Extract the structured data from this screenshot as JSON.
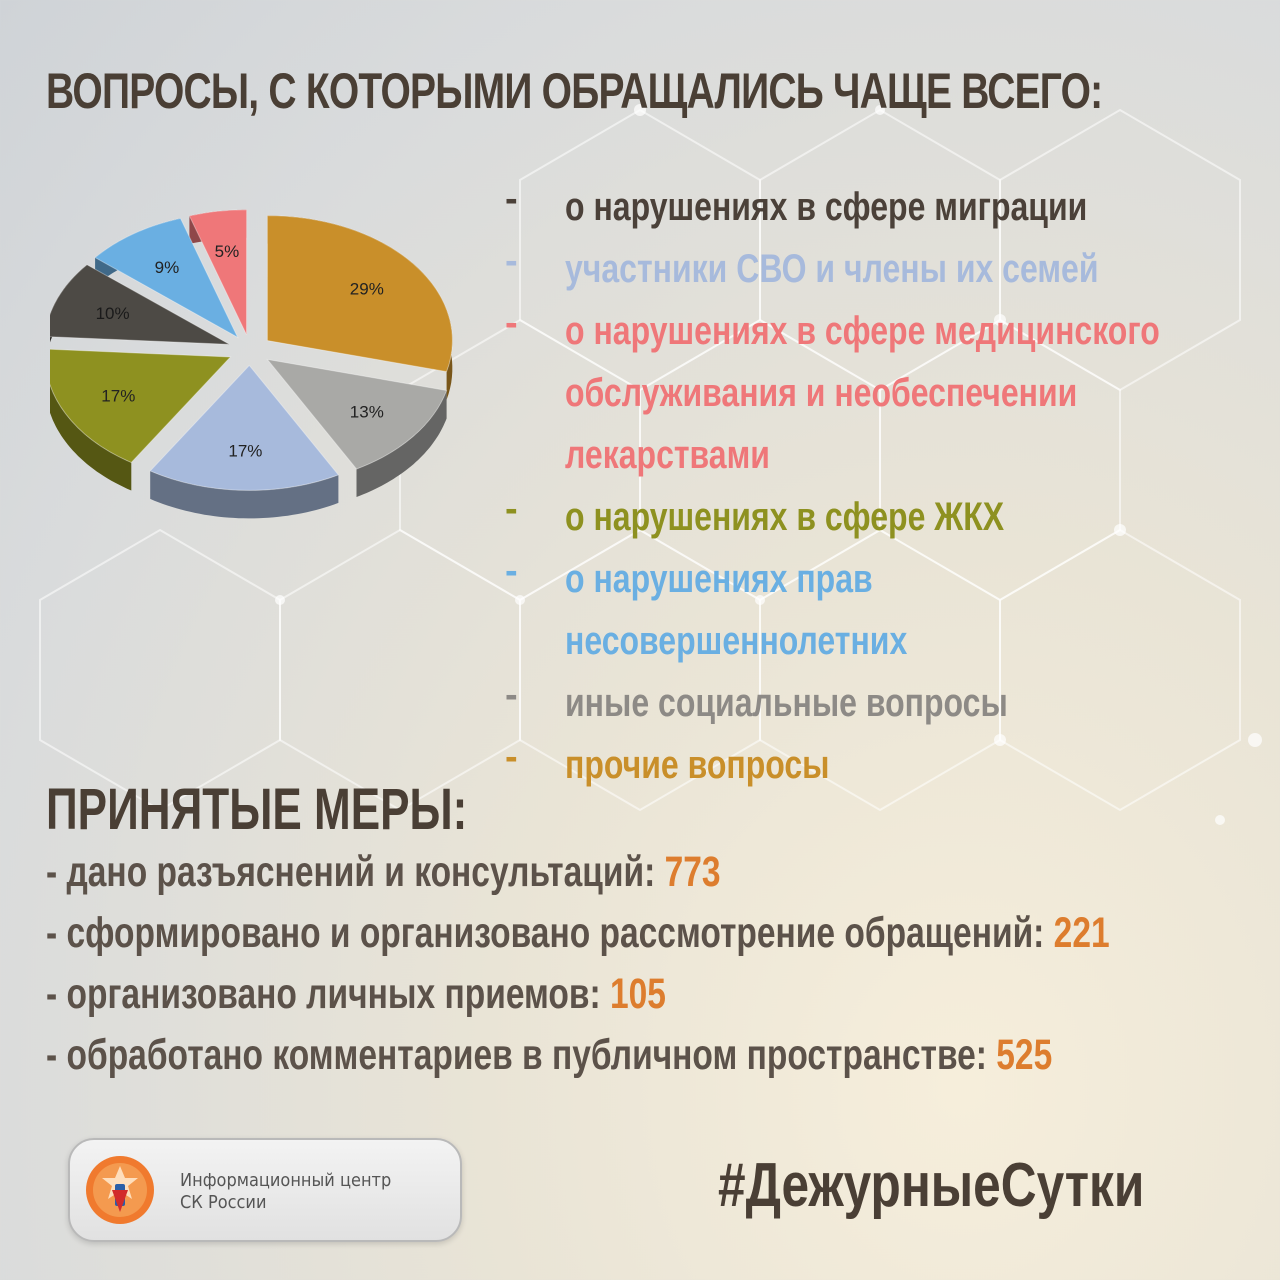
{
  "title": "ВОПРОСЫ, С КОТОРЫМИ ОБРАЩАЛИСЬ ЧАЩЕ ВСЕГО:",
  "chart_data": {
    "type": "pie",
    "slices": [
      {
        "label": "29%",
        "value": 29,
        "color": "#c98f2a"
      },
      {
        "label": "13%",
        "value": 13,
        "color": "#a9a9a6"
      },
      {
        "label": "17%",
        "value": 17,
        "color": "#a7badc"
      },
      {
        "label": "17%",
        "value": 17,
        "color": "#8e9120"
      },
      {
        "label": "10%",
        "value": 10,
        "color": "#4d4a45"
      },
      {
        "label": "9%",
        "value": 9,
        "color": "#6aafe2"
      },
      {
        "label": "5%",
        "value": 5,
        "color": "#ef7779"
      }
    ]
  },
  "legend": [
    {
      "dash": "-",
      "text": "о нарушениях в сфере миграции",
      "color": "#4b4139"
    },
    {
      "dash": "-",
      "text": "участники СВО и члены их семей",
      "color": "#a7badc"
    },
    {
      "dash": "-",
      "text": "о нарушениях в сфере медицинского",
      "color": "#ef7779"
    },
    {
      "dash": "",
      "text": "обслуживания и необеспечении",
      "color": "#ef7779"
    },
    {
      "dash": "",
      "text": "лекарствами",
      "color": "#ef7779"
    },
    {
      "dash": "-",
      "text": "о нарушениях в сфере ЖКХ",
      "color": "#8e9120"
    },
    {
      "dash": "-",
      "text": "о нарушениях прав",
      "color": "#6aafe2"
    },
    {
      "dash": "",
      "text": "несовершеннолетних",
      "color": "#6aafe2"
    },
    {
      "dash": "-",
      "text": "иные социальные вопросы",
      "color": "#8d8a86"
    },
    {
      "dash": "-",
      "text": "прочие вопросы",
      "color": "#c98f2a"
    }
  ],
  "measures": {
    "title": "ПРИНЯТЫЕ МЕРЫ:",
    "items": [
      {
        "text": "- дано разъяснений и консультаций: ",
        "value": "773"
      },
      {
        "text": "- сформировано и организовано рассмотрение обращений: ",
        "value": "221"
      },
      {
        "text": "- организовано личных приемов: ",
        "value": "105"
      },
      {
        "text": "- обработано комментариев в публичном пространстве: ",
        "value": "525"
      }
    ]
  },
  "footer": {
    "logo_line1": "Информационный центр",
    "logo_line2": "СК России",
    "hashtag": "#ДежурныеСутки"
  }
}
